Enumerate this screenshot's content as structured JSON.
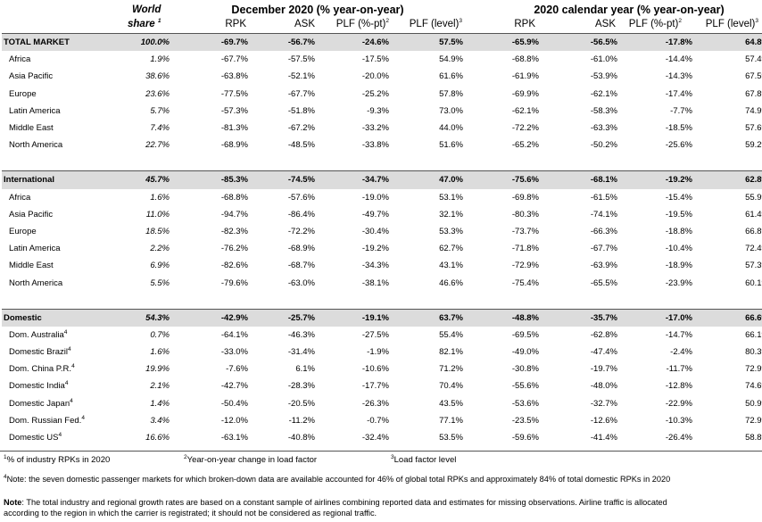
{
  "header": {
    "world_share_line1": "World",
    "world_share_line2": "share",
    "world_share_sup": "1",
    "group1_title": "December 2020 (% year-on-year)",
    "group2_title": "2020 calendar year (% year-on-year)",
    "col_rpk": "RPK",
    "col_ask": "ASK",
    "col_plf_pt": "PLF (%-pt)",
    "col_plf_pt_sup": "2",
    "col_plf_level": "PLF (level)",
    "col_plf_level_sup": "3"
  },
  "rows": [
    {
      "label": "TOTAL MARKET",
      "sup": "",
      "share": "100.0%",
      "d_rpk": "-69.7%",
      "d_ask": "-56.7%",
      "d_plfpt": "-24.6%",
      "d_plf": "57.5%",
      "y_rpk": "-65.9%",
      "y_ask": "-56.5%",
      "y_plfpt": "-17.8%",
      "y_plf": "64.8%"
    },
    {
      "label": "Africa",
      "sup": "",
      "share": "1.9%",
      "d_rpk": "-67.7%",
      "d_ask": "-57.5%",
      "d_plfpt": "-17.5%",
      "d_plf": "54.9%",
      "y_rpk": "-68.8%",
      "y_ask": "-61.0%",
      "y_plfpt": "-14.4%",
      "y_plf": "57.4%"
    },
    {
      "label": "Asia Pacific",
      "sup": "",
      "share": "38.6%",
      "d_rpk": "-63.8%",
      "d_ask": "-52.1%",
      "d_plfpt": "-20.0%",
      "d_plf": "61.6%",
      "y_rpk": "-61.9%",
      "y_ask": "-53.9%",
      "y_plfpt": "-14.3%",
      "y_plf": "67.5%"
    },
    {
      "label": "Europe",
      "sup": "",
      "share": "23.6%",
      "d_rpk": "-77.5%",
      "d_ask": "-67.7%",
      "d_plfpt": "-25.2%",
      "d_plf": "57.8%",
      "y_rpk": "-69.9%",
      "y_ask": "-62.1%",
      "y_plfpt": "-17.4%",
      "y_plf": "67.8%"
    },
    {
      "label": "Latin America",
      "sup": "",
      "share": "5.7%",
      "d_rpk": "-57.3%",
      "d_ask": "-51.8%",
      "d_plfpt": "-9.3%",
      "d_plf": "73.0%",
      "y_rpk": "-62.1%",
      "y_ask": "-58.3%",
      "y_plfpt": "-7.7%",
      "y_plf": "74.9%"
    },
    {
      "label": "Middle East",
      "sup": "",
      "share": "7.4%",
      "d_rpk": "-81.3%",
      "d_ask": "-67.2%",
      "d_plfpt": "-33.2%",
      "d_plf": "44.0%",
      "y_rpk": "-72.2%",
      "y_ask": "-63.3%",
      "y_plfpt": "-18.5%",
      "y_plf": "57.6%"
    },
    {
      "label": "North America",
      "sup": "",
      "share": "22.7%",
      "d_rpk": "-68.9%",
      "d_ask": "-48.5%",
      "d_plfpt": "-33.8%",
      "d_plf": "51.6%",
      "y_rpk": "-65.2%",
      "y_ask": "-50.2%",
      "y_plfpt": "-25.6%",
      "y_plf": "59.2%"
    },
    {
      "label": "International",
      "sup": "",
      "share": "45.7%",
      "d_rpk": "-85.3%",
      "d_ask": "-74.5%",
      "d_plfpt": "-34.7%",
      "d_plf": "47.0%",
      "y_rpk": "-75.6%",
      "y_ask": "-68.1%",
      "y_plfpt": "-19.2%",
      "y_plf": "62.8%"
    },
    {
      "label": "Africa",
      "sup": "",
      "share": "1.6%",
      "d_rpk": "-68.8%",
      "d_ask": "-57.6%",
      "d_plfpt": "-19.0%",
      "d_plf": "53.1%",
      "y_rpk": "-69.8%",
      "y_ask": "-61.5%",
      "y_plfpt": "-15.4%",
      "y_plf": "55.9%"
    },
    {
      "label": "Asia Pacific",
      "sup": "",
      "share": "11.0%",
      "d_rpk": "-94.7%",
      "d_ask": "-86.4%",
      "d_plfpt": "-49.7%",
      "d_plf": "32.1%",
      "y_rpk": "-80.3%",
      "y_ask": "-74.1%",
      "y_plfpt": "-19.5%",
      "y_plf": "61.4%"
    },
    {
      "label": "Europe",
      "sup": "",
      "share": "18.5%",
      "d_rpk": "-82.3%",
      "d_ask": "-72.2%",
      "d_plfpt": "-30.4%",
      "d_plf": "53.3%",
      "y_rpk": "-73.7%",
      "y_ask": "-66.3%",
      "y_plfpt": "-18.8%",
      "y_plf": "66.8%"
    },
    {
      "label": "Latin America",
      "sup": "",
      "share": "2.2%",
      "d_rpk": "-76.2%",
      "d_ask": "-68.9%",
      "d_plfpt": "-19.2%",
      "d_plf": "62.7%",
      "y_rpk": "-71.8%",
      "y_ask": "-67.7%",
      "y_plfpt": "-10.4%",
      "y_plf": "72.4%"
    },
    {
      "label": "Middle East",
      "sup": "",
      "share": "6.9%",
      "d_rpk": "-82.6%",
      "d_ask": "-68.7%",
      "d_plfpt": "-34.3%",
      "d_plf": "43.1%",
      "y_rpk": "-72.9%",
      "y_ask": "-63.9%",
      "y_plfpt": "-18.9%",
      "y_plf": "57.3%"
    },
    {
      "label": "North America",
      "sup": "",
      "share": "5.5%",
      "d_rpk": "-79.6%",
      "d_ask": "-63.0%",
      "d_plfpt": "-38.1%",
      "d_plf": "46.6%",
      "y_rpk": "-75.4%",
      "y_ask": "-65.5%",
      "y_plfpt": "-23.9%",
      "y_plf": "60.1%"
    },
    {
      "label": "Domestic",
      "sup": "",
      "share": "54.3%",
      "d_rpk": "-42.9%",
      "d_ask": "-25.7%",
      "d_plfpt": "-19.1%",
      "d_plf": "63.7%",
      "y_rpk": "-48.8%",
      "y_ask": "-35.7%",
      "y_plfpt": "-17.0%",
      "y_plf": "66.6%"
    },
    {
      "label": "Dom. Australia",
      "sup": "4",
      "share": "0.7%",
      "d_rpk": "-64.1%",
      "d_ask": "-46.3%",
      "d_plfpt": "-27.5%",
      "d_plf": "55.4%",
      "y_rpk": "-69.5%",
      "y_ask": "-62.8%",
      "y_plfpt": "-14.7%",
      "y_plf": "66.1%"
    },
    {
      "label": "Domestic Brazil",
      "sup": "4",
      "share": "1.6%",
      "d_rpk": "-33.0%",
      "d_ask": "-31.4%",
      "d_plfpt": "-1.9%",
      "d_plf": "82.1%",
      "y_rpk": "-49.0%",
      "y_ask": "-47.4%",
      "y_plfpt": "-2.4%",
      "y_plf": "80.3%"
    },
    {
      "label": "Dom. China P.R.",
      "sup": "4",
      "share": "19.9%",
      "d_rpk": "-7.6%",
      "d_ask": "6.1%",
      "d_plfpt": "-10.6%",
      "d_plf": "71.2%",
      "y_rpk": "-30.8%",
      "y_ask": "-19.7%",
      "y_plfpt": "-11.7%",
      "y_plf": "72.9%"
    },
    {
      "label": "Domestic India",
      "sup": "4",
      "share": "2.1%",
      "d_rpk": "-42.7%",
      "d_ask": "-28.3%",
      "d_plfpt": "-17.7%",
      "d_plf": "70.4%",
      "y_rpk": "-55.6%",
      "y_ask": "-48.0%",
      "y_plfpt": "-12.8%",
      "y_plf": "74.6%"
    },
    {
      "label": "Domestic Japan",
      "sup": "4",
      "share": "1.4%",
      "d_rpk": "-50.4%",
      "d_ask": "-20.5%",
      "d_plfpt": "-26.3%",
      "d_plf": "43.5%",
      "y_rpk": "-53.6%",
      "y_ask": "-32.7%",
      "y_plfpt": "-22.9%",
      "y_plf": "50.9%"
    },
    {
      "label": "Dom. Russian Fed.",
      "sup": "4",
      "share": "3.4%",
      "d_rpk": "-12.0%",
      "d_ask": "-11.2%",
      "d_plfpt": "-0.7%",
      "d_plf": "77.1%",
      "y_rpk": "-23.5%",
      "y_ask": "-12.6%",
      "y_plfpt": "-10.3%",
      "y_plf": "72.9%"
    },
    {
      "label": "Domestic US",
      "sup": "4",
      "share": "16.6%",
      "d_rpk": "-63.1%",
      "d_ask": "-40.8%",
      "d_plfpt": "-32.4%",
      "d_plf": "53.5%",
      "y_rpk": "-59.6%",
      "y_ask": "-41.4%",
      "y_plfpt": "-26.4%",
      "y_plf": "58.8%"
    }
  ],
  "footnotes": {
    "f1_sup": "1",
    "f1_text": "% of industry RPKs in 2020",
    "f2_sup": "2",
    "f2_text": "Year-on-year change in load factor",
    "f3_sup": "3",
    "f3_text": "Load factor level",
    "f4_sup": "4",
    "f4_text": "Note: the seven domestic passenger markets for which broken-down data are available accounted for 46% of global total RPKs and approximately 84% of total domestic RPKs in 2020",
    "note_label": "Note",
    "note_text": ": The total industry and regional growth rates are based on a constant sample of airlines combining reported data and estimates for missing observations. Airline traffic is allocated",
    "note_text2": "according to the region in which the carrier is registrated; it should not be considered as regional traffic."
  }
}
